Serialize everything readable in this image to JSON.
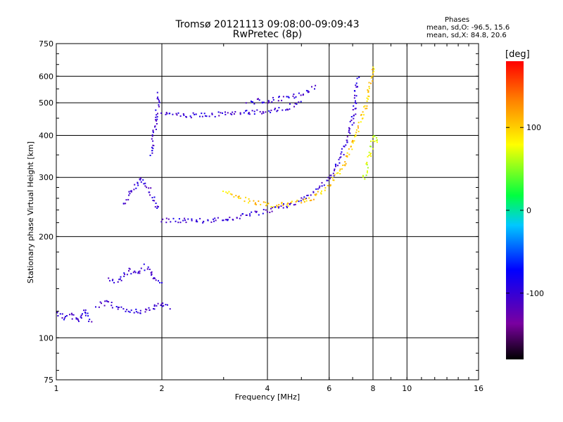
{
  "chart_data": {
    "type": "scatter",
    "title": "Tromsø 20121113 09:08:00-09:09:43",
    "subtitle": "RwPretec (8p)",
    "xlabel": "Frequency [MHz]",
    "ylabel": "Stationary phase Virtual Height [km]",
    "x_scale": "log",
    "y_scale": "log",
    "xlim": [
      1,
      16
    ],
    "ylim": [
      75,
      750
    ],
    "x_ticks": [
      "1",
      "2",
      "4",
      "6",
      "8",
      "10",
      "16"
    ],
    "y_ticks": [
      "75",
      "100",
      "200",
      "300",
      "400",
      "500",
      "600",
      "750"
    ],
    "grid": true,
    "colorbar": {
      "label": "[deg]",
      "range": [
        -180,
        180
      ],
      "ticks": [
        "100",
        "0",
        "-100"
      ]
    },
    "stats": {
      "header": "Phases",
      "o_line": "mean, sd,O:  -96.5,  15.6",
      "x_line": "mean, sd,X:   84.8,  20.6"
    },
    "traces": [
      {
        "x": [
          1.0,
          1.05,
          1.1,
          1.15,
          1.2,
          1.25
        ],
        "y": [
          120,
          115,
          118,
          112,
          122,
          110
        ],
        "phase": -100
      },
      {
        "x": [
          1.3,
          1.4,
          1.5,
          1.6,
          1.7,
          1.8,
          1.9,
          2.0,
          2.1
        ],
        "y": [
          125,
          128,
          122,
          122,
          120,
          121,
          124,
          126,
          124
        ],
        "phase": -100
      },
      {
        "x": [
          1.4,
          1.5,
          1.6,
          1.7,
          1.8,
          1.9,
          2.0
        ],
        "y": [
          150,
          148,
          160,
          155,
          165,
          150,
          145
        ],
        "phase": -100
      },
      {
        "x": [
          1.55,
          1.65,
          1.75,
          1.85,
          1.95
        ],
        "y": [
          250,
          280,
          300,
          270,
          240
        ],
        "phase": -100
      },
      {
        "x": [
          1.85,
          1.9,
          1.93,
          1.96
        ],
        "y": [
          350,
          420,
          480,
          540
        ],
        "phase": -100
      },
      {
        "x": [
          2.0,
          2.3,
          2.6,
          3.0,
          3.5,
          4.0,
          4.5,
          5.0
        ],
        "y": [
          465,
          460,
          462,
          465,
          470,
          475,
          485,
          500
        ],
        "phase": -100
      },
      {
        "x": [
          3.5,
          4.0,
          4.5,
          5.0,
          5.5
        ],
        "y": [
          505,
          510,
          520,
          535,
          560
        ],
        "phase": -100
      },
      {
        "x": [
          2.0,
          2.2,
          2.5,
          3.0,
          3.5,
          4.0,
          4.5,
          5.0,
          5.5,
          6.0,
          6.5,
          7.0,
          7.2
        ],
        "y": [
          225,
          225,
          224,
          226,
          232,
          240,
          248,
          258,
          275,
          300,
          350,
          450,
          600
        ],
        "phase": -100
      },
      {
        "x": [
          3.0,
          3.3,
          3.6,
          4.0,
          4.5,
          5.0,
          5.5,
          6.0,
          6.5,
          7.0,
          7.5,
          7.8,
          8.0
        ],
        "y": [
          275,
          262,
          255,
          250,
          250,
          255,
          265,
          285,
          320,
          380,
          470,
          560,
          650
        ],
        "phase": 100
      },
      {
        "x": [
          7.5,
          7.8,
          8.0,
          8.2
        ],
        "y": [
          300,
          350,
          400,
          380
        ],
        "phase": 70
      }
    ]
  }
}
